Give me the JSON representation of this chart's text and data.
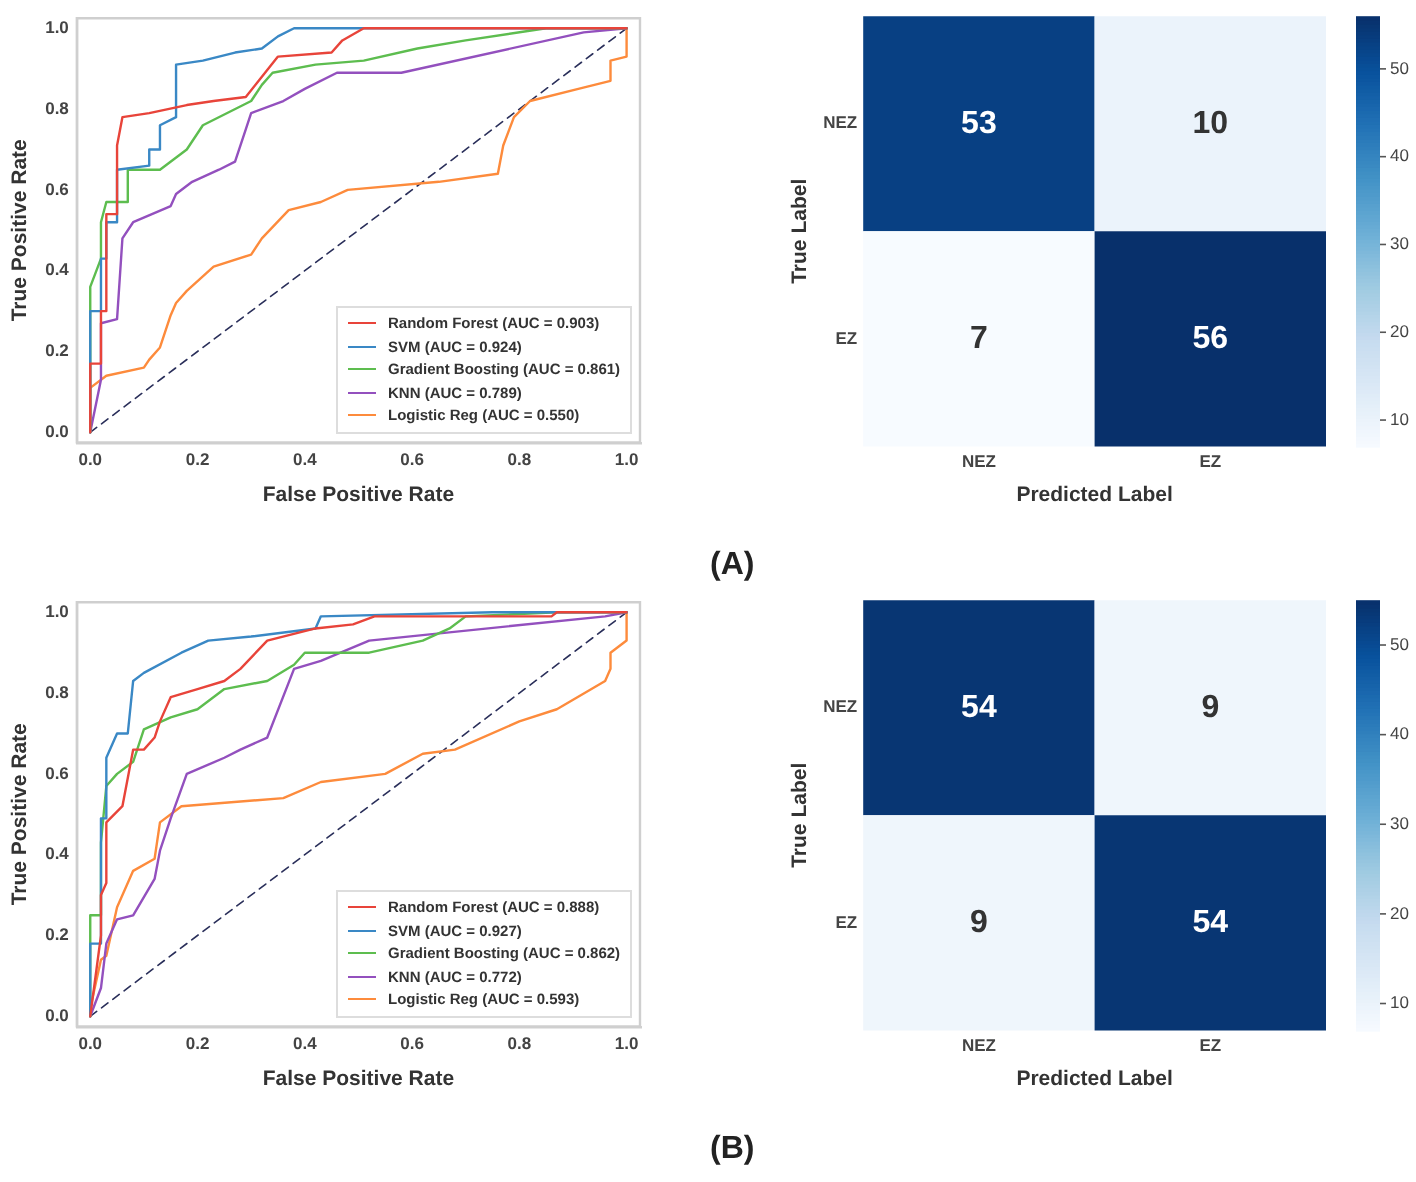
{
  "chart_data": [
    {
      "type": "line",
      "xlabel": "False Positive Rate",
      "ylabel": "True Positive Rate",
      "xlim": [
        -0.025,
        1.025
      ],
      "ylim": [
        -0.025,
        1.025
      ],
      "xticks": [
        {
          "value": 0,
          "label": "0.0"
        },
        {
          "value": 0.2,
          "label": "0.2"
        },
        {
          "value": 0.4,
          "label": "0.4"
        },
        {
          "value": 0.6,
          "label": "0.6"
        },
        {
          "value": 0.8,
          "label": "0.8"
        },
        {
          "value": 1,
          "label": "1.0"
        }
      ],
      "yticks": [
        {
          "value": 0,
          "label": "0.0"
        },
        {
          "value": 0.2,
          "label": "0.2"
        },
        {
          "value": 0.4,
          "label": "0.4"
        },
        {
          "value": 0.6,
          "label": "0.6"
        },
        {
          "value": 0.8,
          "label": "0.8"
        },
        {
          "value": 1,
          "label": "1.0"
        }
      ],
      "grid": false,
      "legend": "bottom right",
      "marker": "none",
      "series": [
        {
          "name": "Random Forest (AUC = 0.903)",
          "color": "#e8443a",
          "x": [
            0,
            0,
            0.02,
            0.02,
            0.03,
            0.03,
            0.05,
            0.05,
            0.06,
            0.11,
            0.18,
            0.23,
            0.29,
            0.32,
            0.35,
            0.45,
            0.47,
            0.51,
            1.0
          ],
          "values": [
            0,
            0.17,
            0.17,
            0.3,
            0.3,
            0.54,
            0.54,
            0.71,
            0.78,
            0.79,
            0.81,
            0.82,
            0.83,
            0.88,
            0.93,
            0.94,
            0.97,
            1.0,
            1.0
          ]
        },
        {
          "name": "SVM (AUC = 0.924)",
          "color": "#3a88c5",
          "x": [
            0,
            0,
            0.02,
            0.02,
            0.03,
            0.03,
            0.05,
            0.05,
            0.11,
            0.11,
            0.13,
            0.13,
            0.16,
            0.16,
            0.21,
            0.27,
            0.32,
            0.35,
            0.38,
            1.0
          ],
          "values": [
            0,
            0.3,
            0.3,
            0.43,
            0.43,
            0.52,
            0.52,
            0.65,
            0.66,
            0.7,
            0.7,
            0.76,
            0.78,
            0.91,
            0.92,
            0.94,
            0.95,
            0.98,
            1.0,
            1.0
          ]
        },
        {
          "name": "Gradient Boosting (AUC = 0.861)",
          "color": "#5dbd4f",
          "x": [
            0,
            0,
            0.02,
            0.02,
            0.03,
            0.07,
            0.07,
            0.13,
            0.18,
            0.21,
            0.3,
            0.32,
            0.34,
            0.42,
            0.51,
            0.61,
            0.7,
            0.85,
            1.0
          ],
          "values": [
            0,
            0.36,
            0.43,
            0.52,
            0.57,
            0.57,
            0.65,
            0.65,
            0.7,
            0.76,
            0.82,
            0.86,
            0.89,
            0.91,
            0.92,
            0.95,
            0.97,
            1.0,
            1.0
          ]
        },
        {
          "name": "KNN (AUC = 0.789)",
          "color": "#9350be",
          "x": [
            0,
            0.02,
            0.02,
            0.05,
            0.06,
            0.08,
            0.15,
            0.16,
            0.19,
            0.24,
            0.27,
            0.29,
            0.3,
            0.36,
            0.4,
            0.46,
            0.58,
            0.92,
            1.0
          ],
          "values": [
            0,
            0.13,
            0.27,
            0.28,
            0.48,
            0.52,
            0.56,
            0.59,
            0.62,
            0.65,
            0.67,
            0.75,
            0.79,
            0.82,
            0.85,
            0.89,
            0.89,
            0.99,
            1.0
          ]
        },
        {
          "name": "Logistic Reg (AUC = 0.550)",
          "color": "#fd8b3c",
          "x": [
            0,
            0,
            0.03,
            0.1,
            0.11,
            0.13,
            0.15,
            0.16,
            0.18,
            0.23,
            0.3,
            0.32,
            0.37,
            0.43,
            0.48,
            0.65,
            0.76,
            0.77,
            0.79,
            0.82,
            0.91,
            0.97,
            0.97,
            1.0,
            1.0
          ],
          "values": [
            0,
            0.11,
            0.14,
            0.16,
            0.18,
            0.21,
            0.29,
            0.32,
            0.35,
            0.41,
            0.44,
            0.48,
            0.55,
            0.57,
            0.6,
            0.62,
            0.64,
            0.71,
            0.78,
            0.82,
            0.85,
            0.87,
            0.92,
            0.93,
            1.0
          ]
        },
        {
          "color": "#2a2f5a",
          "line_style": "dashed",
          "x": [
            0,
            1
          ],
          "values": [
            0,
            1
          ]
        }
      ]
    },
    {
      "type": "heatmap",
      "xlabel": "Predicted Label",
      "ylabel": "True Label",
      "categories": [
        "NEZ",
        "EZ"
      ],
      "y_categories": [
        "NEZ",
        "EZ"
      ],
      "cells": [
        [
          53,
          10
        ],
        [
          7,
          56
        ]
      ],
      "data_labels": true,
      "clim": [
        7,
        56
      ],
      "cticks": [
        10,
        20,
        30,
        40,
        50
      ],
      "annotations": [
        "(A)"
      ]
    },
    {
      "type": "line",
      "xlabel": "False Positive Rate",
      "ylabel": "True Positive Rate",
      "xlim": [
        -0.025,
        1.025
      ],
      "ylim": [
        -0.025,
        1.025
      ],
      "xticks": [
        {
          "value": 0,
          "label": "0.0"
        },
        {
          "value": 0.2,
          "label": "0.2"
        },
        {
          "value": 0.4,
          "label": "0.4"
        },
        {
          "value": 0.6,
          "label": "0.6"
        },
        {
          "value": 0.8,
          "label": "0.8"
        },
        {
          "value": 1,
          "label": "1.0"
        }
      ],
      "yticks": [
        {
          "value": 0,
          "label": "0.0"
        },
        {
          "value": 0.2,
          "label": "0.2"
        },
        {
          "value": 0.4,
          "label": "0.4"
        },
        {
          "value": 0.6,
          "label": "0.6"
        },
        {
          "value": 0.8,
          "label": "0.8"
        },
        {
          "value": 1,
          "label": "1.0"
        }
      ],
      "grid": false,
      "legend": "bottom right",
      "marker": "none",
      "series": [
        {
          "name": "Random Forest (AUC = 0.888)",
          "color": "#e8443a",
          "x": [
            0,
            0.02,
            0.02,
            0.03,
            0.03,
            0.06,
            0.07,
            0.08,
            0.1,
            0.12,
            0.13,
            0.15,
            0.2,
            0.25,
            0.28,
            0.33,
            0.42,
            0.49,
            0.53,
            0.86,
            0.87,
            1.0
          ],
          "values": [
            0,
            0.2,
            0.3,
            0.33,
            0.48,
            0.52,
            0.59,
            0.66,
            0.66,
            0.69,
            0.73,
            0.79,
            0.81,
            0.83,
            0.86,
            0.93,
            0.96,
            0.97,
            0.99,
            0.99,
            1.0,
            1.0
          ]
        },
        {
          "name": "SVM (AUC = 0.927)",
          "color": "#3a88c5",
          "x": [
            0,
            0,
            0.02,
            0.02,
            0.03,
            0.03,
            0.05,
            0.07,
            0.08,
            0.1,
            0.17,
            0.22,
            0.3,
            0.42,
            0.43,
            0.75,
            1.0
          ],
          "values": [
            0,
            0.18,
            0.18,
            0.49,
            0.49,
            0.64,
            0.7,
            0.7,
            0.83,
            0.85,
            0.9,
            0.93,
            0.94,
            0.96,
            0.99,
            1.0,
            1.0
          ]
        },
        {
          "name": "Gradient Boosting (AUC = 0.862)",
          "color": "#5dbd4f",
          "x": [
            0,
            0,
            0.02,
            0.02,
            0.03,
            0.05,
            0.08,
            0.1,
            0.15,
            0.2,
            0.25,
            0.33,
            0.38,
            0.4,
            0.52,
            0.62,
            0.67,
            0.7,
            0.87,
            1.0
          ],
          "values": [
            0,
            0.25,
            0.25,
            0.43,
            0.57,
            0.6,
            0.63,
            0.71,
            0.74,
            0.76,
            0.81,
            0.83,
            0.87,
            0.9,
            0.9,
            0.93,
            0.96,
            0.99,
            1.0,
            1.0
          ]
        },
        {
          "name": "KNN (AUC = 0.772)",
          "color": "#9350be",
          "x": [
            0,
            0.02,
            0.03,
            0.05,
            0.08,
            0.12,
            0.13,
            0.15,
            0.18,
            0.25,
            0.28,
            0.33,
            0.38,
            0.43,
            0.52,
            0.96,
            1.0
          ],
          "values": [
            0,
            0.07,
            0.18,
            0.24,
            0.25,
            0.34,
            0.41,
            0.49,
            0.6,
            0.64,
            0.66,
            0.69,
            0.86,
            0.88,
            0.93,
            0.99,
            1.0
          ]
        },
        {
          "name": "Logistic Reg (AUC = 0.593)",
          "color": "#fd8b3c",
          "x": [
            0,
            0,
            0.02,
            0.03,
            0.05,
            0.08,
            0.12,
            0.13,
            0.17,
            0.36,
            0.43,
            0.55,
            0.62,
            0.68,
            0.8,
            0.87,
            0.96,
            0.97,
            0.97,
            1.0,
            1.0
          ],
          "values": [
            0,
            0.02,
            0.14,
            0.15,
            0.27,
            0.36,
            0.39,
            0.48,
            0.52,
            0.54,
            0.58,
            0.6,
            0.65,
            0.66,
            0.73,
            0.76,
            0.83,
            0.86,
            0.9,
            0.93,
            1.0
          ]
        },
        {
          "color": "#2a2f5a",
          "line_style": "dashed",
          "x": [
            0,
            1
          ],
          "values": [
            0,
            1
          ]
        }
      ]
    },
    {
      "type": "heatmap",
      "xlabel": "Predicted Label",
      "ylabel": "True Label",
      "categories": [
        "NEZ",
        "EZ"
      ],
      "y_categories": [
        "NEZ",
        "EZ"
      ],
      "cells": [
        [
          54,
          9
        ],
        [
          9,
          54
        ]
      ],
      "data_labels": true,
      "clim": [
        7,
        55
      ],
      "cticks": [
        10,
        20,
        30,
        40,
        50
      ],
      "annotations": [
        "(B)"
      ]
    }
  ]
}
